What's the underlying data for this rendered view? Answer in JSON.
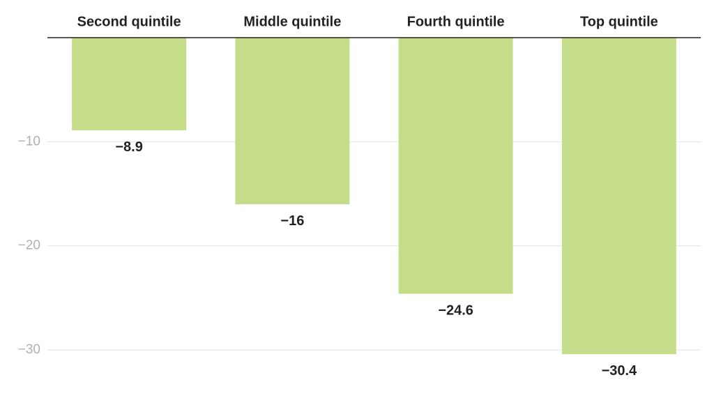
{
  "chart_data": {
    "type": "bar",
    "categories": [
      "Second quintile",
      "Middle quintile",
      "Fourth quintile",
      "Top quintile"
    ],
    "values": [
      -8.9,
      -16,
      -24.6,
      -30.4
    ],
    "value_labels": [
      "−8.9",
      "−16",
      "−24.6",
      "−30.4"
    ],
    "color": "#c5dc89",
    "ylim": [
      -34,
      0
    ],
    "yticks": [
      {
        "value": -10,
        "label": "−10"
      },
      {
        "value": -20,
        "label": "−20"
      },
      {
        "value": -30,
        "label": "−30"
      }
    ],
    "grid": true
  }
}
